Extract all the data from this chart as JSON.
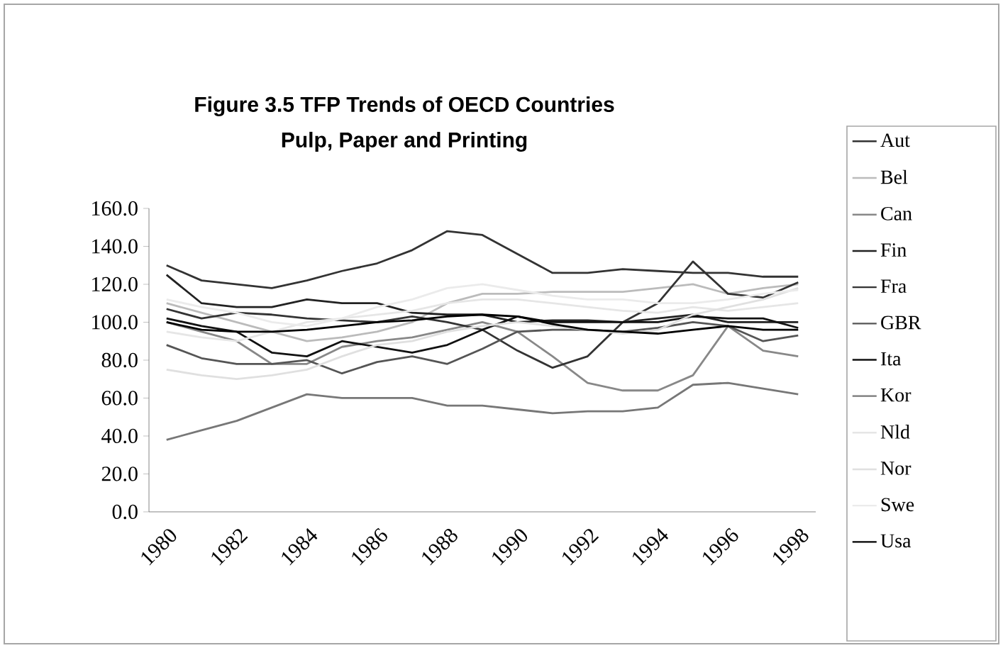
{
  "chart_data": {
    "type": "line",
    "title": "Figure 3.5 TFP Trends of OECD Countries",
    "subtitle": "Pulp, Paper and Printing",
    "categories": [
      "1980",
      null,
      "1982",
      null,
      "1984",
      null,
      "1986",
      null,
      "1988",
      null,
      "1990",
      null,
      "1992",
      null,
      "1994",
      null,
      "1996",
      null,
      "1998"
    ],
    "series": [
      {
        "name": "Aut",
        "color": "#333333",
        "values": [
          130,
          122,
          120,
          118,
          122,
          127,
          131,
          138,
          148,
          146,
          136,
          126,
          126,
          128,
          127,
          126,
          126,
          124,
          124
        ]
      },
      {
        "name": "Bel",
        "color": "#bbbbbb",
        "values": [
          110,
          105,
          100,
          95,
          90,
          92,
          95,
          100,
          110,
          115,
          115,
          116,
          116,
          116,
          118,
          120,
          115,
          118,
          120
        ]
      },
      {
        "name": "Can",
        "color": "#888888",
        "values": [
          100,
          95,
          90,
          78,
          78,
          87,
          90,
          92,
          96,
          100,
          95,
          82,
          68,
          64,
          64,
          72,
          98,
          85,
          82
        ]
      },
      {
        "name": "Fin",
        "color": "#222222",
        "values": [
          125,
          110,
          108,
          108,
          112,
          110,
          110,
          105,
          104,
          104,
          100,
          101,
          101,
          100,
          102,
          104,
          100,
          100,
          100
        ]
      },
      {
        "name": "Fra",
        "color": "#333333",
        "values": [
          107,
          102,
          105,
          104,
          102,
          101,
          100,
          103,
          100,
          96,
          85,
          76,
          82,
          100,
          110,
          132,
          115,
          113,
          121
        ]
      },
      {
        "name": "GBR",
        "color": "#555555",
        "values": [
          88,
          81,
          78,
          78,
          80,
          73,
          79,
          82,
          78,
          86,
          95,
          96,
          96,
          95,
          97,
          100,
          98,
          90,
          93
        ]
      },
      {
        "name": "Ita",
        "color": "#111111",
        "values": [
          102,
          98,
          95,
          84,
          82,
          90,
          87,
          84,
          88,
          96,
          103,
          100,
          100,
          100,
          100,
          103,
          102,
          102,
          97
        ]
      },
      {
        "name": "Kor",
        "color": "#777777",
        "values": [
          38,
          43,
          48,
          55,
          62,
          60,
          60,
          60,
          56,
          56,
          54,
          52,
          53,
          53,
          55,
          67,
          68,
          65,
          62
        ]
      },
      {
        "name": "Nld",
        "color": "#e6e6e6",
        "values": [
          95,
          92,
          90,
          95,
          100,
          102,
          104,
          106,
          110,
          112,
          112,
          110,
          108,
          106,
          105,
          108,
          106,
          108,
          110
        ]
      },
      {
        "name": "Nor",
        "color": "#e0e0e0",
        "values": [
          75,
          72,
          70,
          72,
          75,
          82,
          88,
          90,
          95,
          98,
          100,
          98,
          96,
          94,
          96,
          104,
          108,
          112,
          118
        ]
      },
      {
        "name": "Swe",
        "color": "#ebebeb",
        "values": [
          112,
          108,
          105,
          100,
          98,
          102,
          108,
          112,
          118,
          120,
          117,
          114,
          112,
          112,
          110,
          110,
          112,
          115,
          117
        ]
      },
      {
        "name": "Usa",
        "color": "#000000",
        "values": [
          100,
          96,
          95,
          95,
          96,
          98,
          100,
          101,
          103,
          104,
          103,
          99,
          96,
          95,
          94,
          96,
          98,
          96,
          96
        ]
      }
    ],
    "ylim": [
      0,
      160
    ],
    "yticks": [
      {
        "value": 0,
        "label": "0.0"
      },
      {
        "value": 20,
        "label": "20.0"
      },
      {
        "value": 40,
        "label": "40.0"
      },
      {
        "value": 60,
        "label": "60.0"
      },
      {
        "value": 80,
        "label": "80.0"
      },
      {
        "value": 100,
        "label": "100.0"
      },
      {
        "value": 120,
        "label": "120.0"
      },
      {
        "value": 140,
        "label": "140.0"
      },
      {
        "value": 160,
        "label": "160.0"
      }
    ],
    "grid": false,
    "legend": "right",
    "marker": "none",
    "line_style": "solid"
  }
}
